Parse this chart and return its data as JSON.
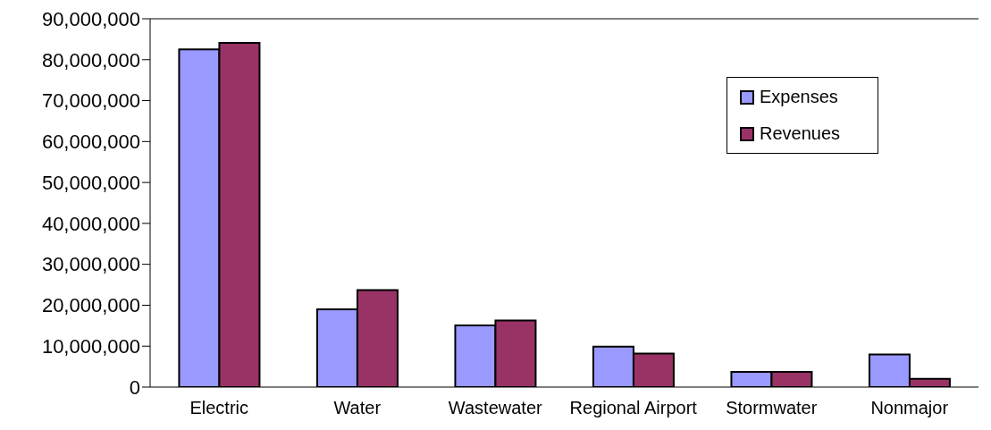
{
  "chart_data": {
    "type": "bar",
    "categories": [
      "Electric",
      "Water",
      "Wastewater",
      "Regional Airport",
      "Stormwater",
      "Nonmajor"
    ],
    "series": [
      {
        "name": "Expenses",
        "color": "#9999ff",
        "values": [
          82500000,
          19000000,
          15100000,
          9900000,
          3700000,
          8000000
        ]
      },
      {
        "name": "Revenues",
        "color": "#993366",
        "values": [
          84100000,
          23700000,
          16300000,
          8200000,
          3700000,
          2000000
        ]
      }
    ],
    "ylim": [
      0,
      90000000
    ],
    "yticks": [
      0,
      {
        "value": 10000000,
        "label": "10,000,000"
      },
      {
        "value": 20000000,
        "label": "20,000,000"
      },
      {
        "value": 30000000,
        "label": "30,000,000"
      },
      {
        "value": 40000000,
        "label": "40,000,000"
      },
      {
        "value": 50000000,
        "label": "50,000,000"
      },
      {
        "value": 60000000,
        "label": "60,000,000"
      },
      {
        "value": 70000000,
        "label": "70,000,000"
      },
      {
        "value": 80000000,
        "label": "80,000,000"
      },
      {
        "value": 90000000,
        "label": "90,000,000"
      }
    ],
    "legend": "top right",
    "grid": false
  }
}
